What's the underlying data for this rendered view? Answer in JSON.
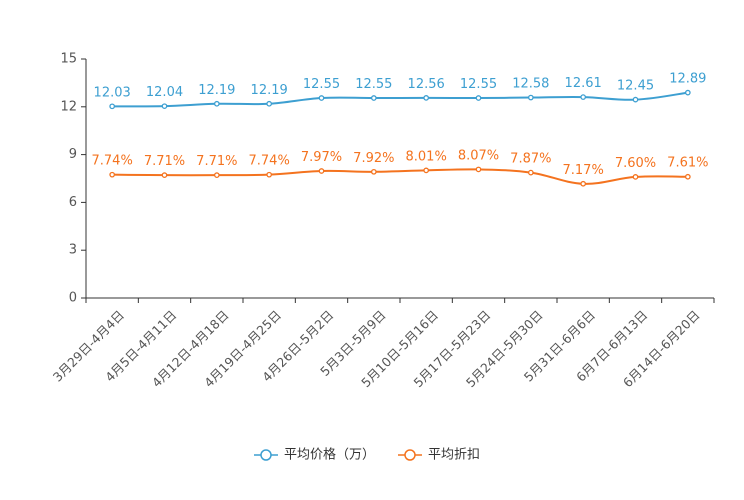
{
  "chart_data": {
    "type": "line",
    "title": "",
    "xlabel": "",
    "ylabel": "",
    "ylim": [
      0,
      15
    ],
    "yticks": [
      0,
      3,
      6,
      9,
      12,
      15
    ],
    "ytick_labels": [
      "0",
      "3",
      "6",
      "9",
      "12",
      "15"
    ],
    "grid": false,
    "legend_position": "bottom-center",
    "categories": [
      "3月29日-4月4日",
      "4月5日-4月11日",
      "4月12日-4月18日",
      "4月19日-4月25日",
      "4月26日-5月2日",
      "5月3日-5月9日",
      "5月10日-5月16日",
      "5月17日-5月23日",
      "5月24日-5月30日",
      "5月31日-6月6日",
      "6月7日-6月13日",
      "6月14日-6月20日"
    ],
    "series": [
      {
        "name": "平均价格（万）",
        "color": "#3d9fd1",
        "values": [
          12.03,
          12.04,
          12.19,
          12.19,
          12.55,
          12.55,
          12.56,
          12.55,
          12.58,
          12.61,
          12.45,
          12.89
        ],
        "labels": [
          "12.03",
          "12.04",
          "12.19",
          "12.19",
          "12.55",
          "12.55",
          "12.56",
          "12.55",
          "12.58",
          "12.61",
          "12.45",
          "12.89"
        ]
      },
      {
        "name": "平均折扣",
        "color": "#f4731f",
        "values": [
          7.74,
          7.71,
          7.71,
          7.74,
          7.97,
          7.92,
          8.01,
          8.07,
          7.87,
          7.17,
          7.6,
          7.61
        ],
        "labels": [
          "7.74%",
          "7.71%",
          "7.71%",
          "7.74%",
          "7.97%",
          "7.92%",
          "8.01%",
          "8.07%",
          "7.87%",
          "7.17%",
          "7.60%",
          "7.61%"
        ]
      }
    ]
  }
}
